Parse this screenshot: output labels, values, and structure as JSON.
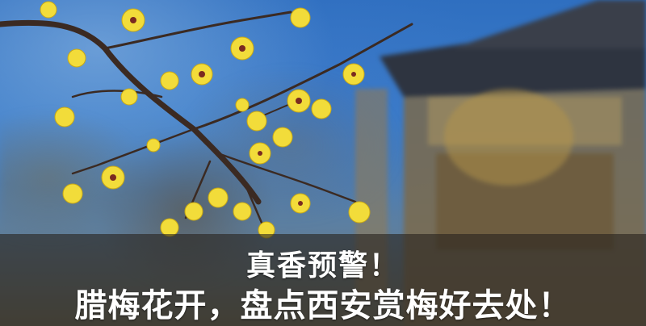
{
  "image": {
    "description_colors": {
      "sky": "#3a7bc8",
      "blossom": "#f2dc3a",
      "branch": "#3b2a22",
      "caption_band": "#28241e"
    }
  },
  "caption": {
    "line1": "真香预警！",
    "line2": "腊梅花开，盘点西安赏梅好去处！"
  }
}
